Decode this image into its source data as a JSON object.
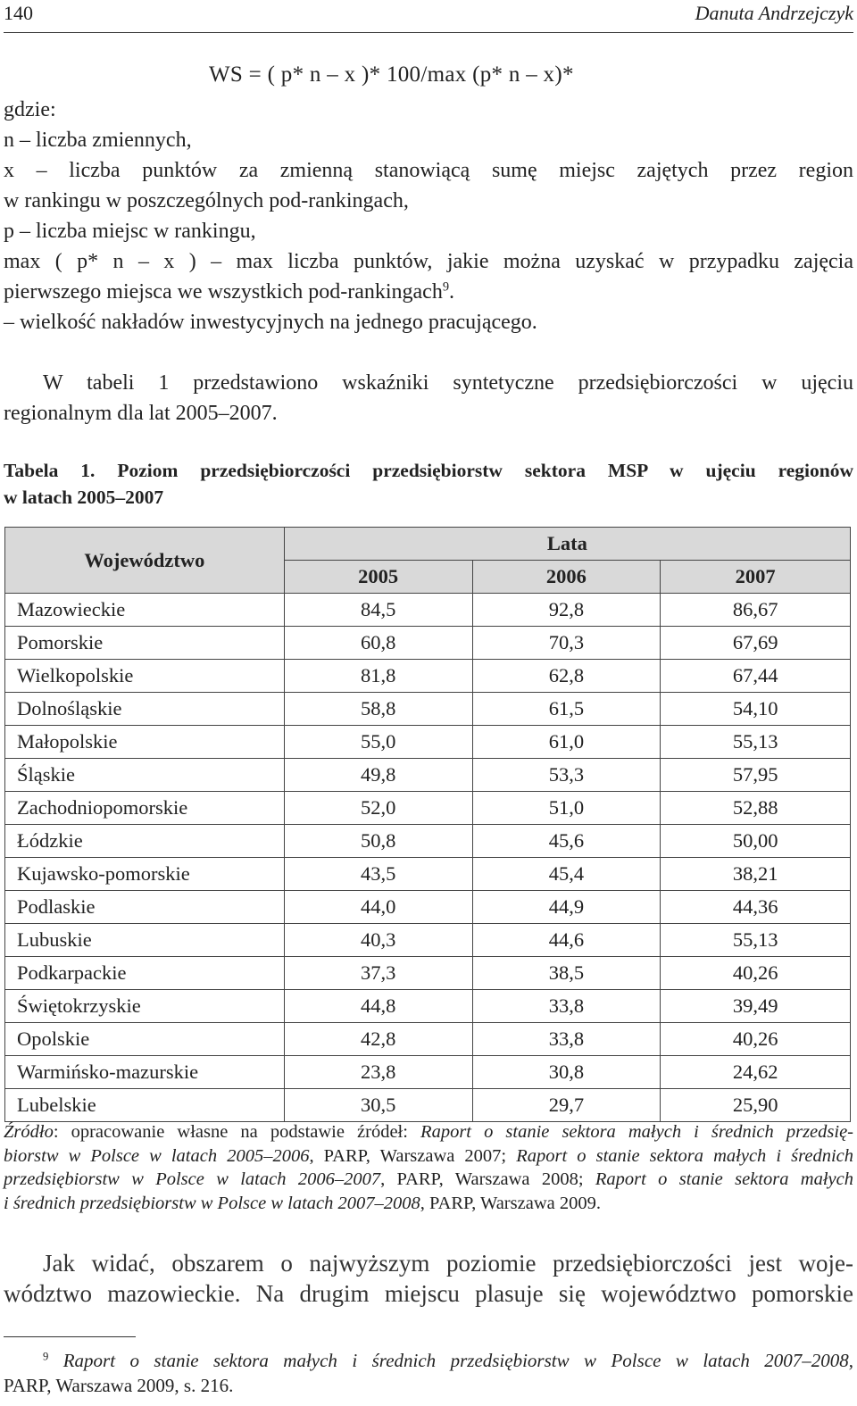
{
  "header": {
    "page_number": "140",
    "author": "Danuta Andrzejczyk"
  },
  "formula": "WS = ( p* n – x )* 100/max (p* n – x)*",
  "definitions": {
    "intro": "gdzie:",
    "lines": [
      "n – liczba zmiennych,",
      "x – liczba punktów za zmienną stanowiącą sumę miejsc zajętych przez region",
      "w rankingu w poszczególnych pod-rankingach,",
      "p – liczba miejsc w rankingu,",
      "max ( p* n – x ) – max liczba punktów, jakie można uzyskać w przypadku zajęcia",
      "pierwszego miejsca we wszystkich pod-rankingach"
    ],
    "fn_ref": "9",
    "after_fn": ".",
    "last": "– wielkość nakładów inwestycyjnych na jednego pracującego."
  },
  "paragraph1": {
    "line1": "W tabeli 1 przedstawiono wskaźniki syntetyczne przedsiębiorczości w ujęciu",
    "line2": "regionalnym dla lat 2005–2007."
  },
  "caption": {
    "line1": "Tabela 1. Poziom przedsiębiorczości przedsiębiorstw sektora MSP w ujęciu regionów",
    "line2": "w latach 2005–2007"
  },
  "table": {
    "region_header": "Województwo",
    "years_header": "Lata",
    "years": [
      "2005",
      "2006",
      "2007"
    ],
    "rows": [
      {
        "region": "Mazowieckie",
        "values": [
          "84,5",
          "92,8",
          "86,67"
        ]
      },
      {
        "region": "Pomorskie",
        "values": [
          "60,8",
          "70,3",
          "67,69"
        ]
      },
      {
        "region": "Wielkopolskie",
        "values": [
          "81,8",
          "62,8",
          "67,44"
        ]
      },
      {
        "region": "Dolnośląskie",
        "values": [
          "58,8",
          "61,5",
          "54,10"
        ]
      },
      {
        "region": "Małopolskie",
        "values": [
          "55,0",
          "61,0",
          "55,13"
        ]
      },
      {
        "region": "Śląskie",
        "values": [
          "49,8",
          "53,3",
          "57,95"
        ]
      },
      {
        "region": "Zachodniopomorskie",
        "values": [
          "52,0",
          "51,0",
          "52,88"
        ]
      },
      {
        "region": "Łódzkie",
        "values": [
          "50,8",
          "45,6",
          "50,00"
        ]
      },
      {
        "region": "Kujawsko-pomorskie",
        "values": [
          "43,5",
          "45,4",
          "38,21"
        ]
      },
      {
        "region": "Podlaskie",
        "values": [
          "44,0",
          "44,9",
          "44,36"
        ]
      },
      {
        "region": "Lubuskie",
        "values": [
          "40,3",
          "44,6",
          "55,13"
        ]
      },
      {
        "region": "Podkarpackie",
        "values": [
          "37,3",
          "38,5",
          "40,26"
        ]
      },
      {
        "region": "Świętokrzyskie",
        "values": [
          "44,8",
          "33,8",
          "39,49"
        ]
      },
      {
        "region": "Opolskie",
        "values": [
          "42,8",
          "33,8",
          "40,26"
        ]
      },
      {
        "region": "Warmińsko-mazurskie",
        "values": [
          "23,8",
          "30,8",
          "24,62"
        ]
      },
      {
        "region": "Lubelskie",
        "values": [
          "30,5",
          "29,7",
          "25,90"
        ]
      }
    ]
  },
  "source": {
    "label": "Źródło",
    "l1_plain": ": opracowanie własne na podstawie źródeł: ",
    "l1_ital": "Raport o stanie sektora małych i średnich przedsię-",
    "l2_ital": "biorstw w Polsce w latach 2005–2006",
    "l2_plain": ", PARP, Warszawa 2007; ",
    "l2_ital2": "Raport o stanie sektora małych i średnich",
    "l3_ital": "przedsiębiorstw w Polsce w latach 2006–2007",
    "l3_plain": ", PARP, Warszawa 2008; ",
    "l3_ital2": "Raport o stanie sektora małych",
    "l4_ital": "i średnich przedsiębiorstw w Polsce w latach 2007–2008",
    "l4_plain": ", PARP, Warszawa 2009."
  },
  "closing": {
    "line1": "Jak widać, obszarem o najwyższym poziomie przedsiębiorczości jest woje-",
    "line2": "wództwo mazowieckie. Na drugim miejscu plasuje się województwo pomorskie"
  },
  "footnote": {
    "number": "9",
    "ital": "Raport o stanie sektora małych i średnich przedsiębiorstw w Polsce w latach 2007–2008",
    "after_ital": ",",
    "line2": "PARP, Warszawa 2009, s. 216."
  }
}
